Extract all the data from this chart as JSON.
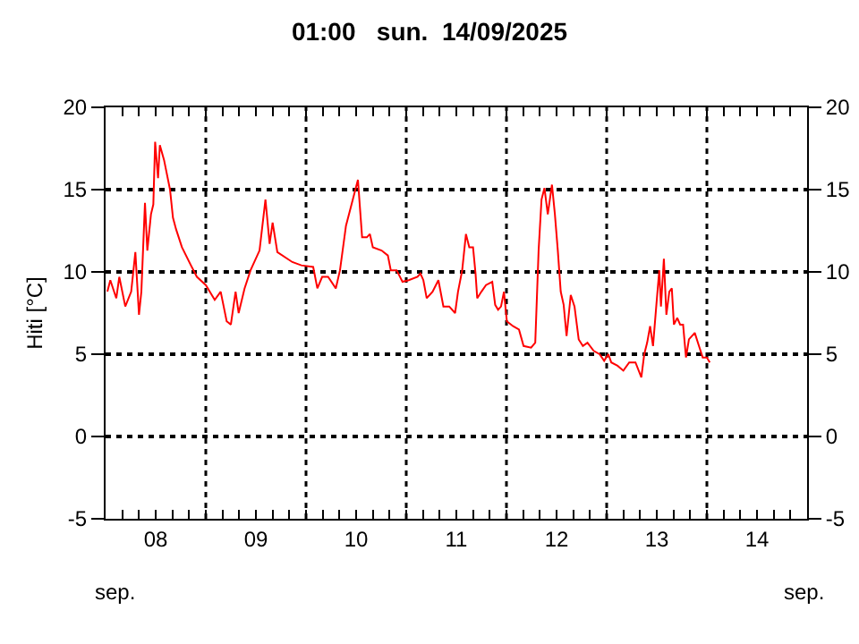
{
  "chart_data": {
    "type": "line",
    "title": "01:00   sun.  14/09/2025",
    "ylabel": "Hiti [°C]",
    "annotations": [
      "sep.",
      "sep."
    ],
    "x": [
      "2025-09-08T00:26",
      "2025-09-08T01:08",
      "2025-09-08T02:34",
      "2025-09-08T03:17",
      "2025-09-08T04:43",
      "2025-09-08T06:08",
      "2025-09-08T07:08",
      "2025-09-08T08:00",
      "2025-09-08T08:34",
      "2025-09-08T09:26",
      "2025-09-08T10:00",
      "2025-09-08T10:52",
      "2025-09-08T11:26",
      "2025-09-08T11:52",
      "2025-09-08T12:34",
      "2025-09-08T13:00",
      "2025-09-08T14:00",
      "2025-09-08T15:26",
      "2025-09-08T16:08",
      "2025-09-08T16:52",
      "2025-09-08T18:17",
      "2025-09-08T20:26",
      "2025-09-08T21:52",
      "2025-09-09T00:00",
      "2025-09-09T02:08",
      "2025-09-09T03:34",
      "2025-09-09T05:00",
      "2025-09-09T06:00",
      "2025-09-09T07:08",
      "2025-09-09T07:52",
      "2025-09-09T09:17",
      "2025-09-09T10:43",
      "2025-09-09T12:52",
      "2025-09-09T14:17",
      "2025-09-09T15:17",
      "2025-09-09T16:00",
      "2025-09-09T17:08",
      "2025-09-09T20:43",
      "2025-09-09T22:52",
      "2025-09-10T01:43",
      "2025-09-10T02:43",
      "2025-09-10T03:52",
      "2025-09-10T05:17",
      "2025-09-10T07:08",
      "2025-09-10T08:08",
      "2025-09-10T09:34",
      "2025-09-10T11:00",
      "2025-09-10T12:26",
      "2025-09-10T13:26",
      "2025-09-10T14:34",
      "2025-09-10T15:18",
      "2025-09-10T16:00",
      "2025-09-10T18:06",
      "2025-09-10T19:36",
      "2025-09-10T20:18",
      "2025-09-10T21:42",
      "2025-09-10T23:06",
      "2025-09-11T00:36",
      "2025-09-11T02:42",
      "2025-09-11T03:24",
      "2025-09-11T04:06",
      "2025-09-11T04:54",
      "2025-09-11T06:18",
      "2025-09-11T07:42",
      "2025-09-11T08:54",
      "2025-09-11T10:18",
      "2025-09-11T11:42",
      "2025-09-11T12:24",
      "2025-09-11T13:24",
      "2025-09-11T14:18",
      "2025-09-11T15:06",
      "2025-09-11T16:00",
      "2025-09-11T16:36",
      "2025-09-11T17:00",
      "2025-09-11T18:00",
      "2025-09-11T19:06",
      "2025-09-11T20:36",
      "2025-09-11T21:18",
      "2025-09-11T22:00",
      "2025-09-11T22:42",
      "2025-09-11T23:24",
      "2025-09-12T00:06",
      "2025-09-12T01:36",
      "2025-09-12T03:00",
      "2025-09-12T04:06",
      "2025-09-12T05:54",
      "2025-09-12T06:54",
      "2025-09-12T07:42",
      "2025-09-12T08:24",
      "2025-09-12T09:06",
      "2025-09-12T09:54",
      "2025-09-12T10:54",
      "2025-09-12T11:36",
      "2025-09-12T12:18",
      "2025-09-12T13:00",
      "2025-09-12T13:42",
      "2025-09-12T14:24",
      "2025-09-12T15:24",
      "2025-09-12T16:18",
      "2025-09-12T17:18",
      "2025-09-12T18:18",
      "2025-09-12T19:24",
      "2025-09-12T20:54",
      "2025-09-12T22:18",
      "2025-09-12T23:24",
      "2025-09-13T00:24",
      "2025-09-13T01:06",
      "2025-09-13T02:36",
      "2025-09-13T04:00",
      "2025-09-13T05:24",
      "2025-09-13T06:54",
      "2025-09-13T08:18",
      "2025-09-13T09:00",
      "2025-09-13T09:42",
      "2025-09-13T10:24",
      "2025-09-13T11:06",
      "2025-09-13T11:54",
      "2025-09-13T12:36",
      "2025-09-13T13:00",
      "2025-09-13T13:42",
      "2025-09-13T14:18",
      "2025-09-13T15:00",
      "2025-09-13T15:36",
      "2025-09-13T16:06",
      "2025-09-13T16:54",
      "2025-09-13T17:36",
      "2025-09-13T18:18",
      "2025-09-13T19:00",
      "2025-09-13T19:42",
      "2025-09-13T21:06",
      "2025-09-13T22:06",
      "2025-09-13T23:00",
      "2025-09-14T00:00",
      "2025-09-14T00:42"
    ],
    "series": [
      {
        "color": "#ff0000",
        "values": [
          8.8,
          9.5,
          8.4,
          9.7,
          7.9,
          8.8,
          11.2,
          7.4,
          8.8,
          14.2,
          11.3,
          13.5,
          14.1,
          17.9,
          15.7,
          17.7,
          16.8,
          15.0,
          13.3,
          12.6,
          11.5,
          10.4,
          9.7,
          9.2,
          8.3,
          8.8,
          7.0,
          6.8,
          8.8,
          7.5,
          9.0,
          10.1,
          11.3,
          14.4,
          11.7,
          13.0,
          11.2,
          10.6,
          10.4,
          10.3,
          9.0,
          9.7,
          9.7,
          9.0,
          10.1,
          12.8,
          14.2,
          15.6,
          12.1,
          12.1,
          12.3,
          11.5,
          11.3,
          11.0,
          10.1,
          10.1,
          9.4,
          9.5,
          9.7,
          9.9,
          9.5,
          8.4,
          8.8,
          9.5,
          7.9,
          7.9,
          7.5,
          8.8,
          10.1,
          12.3,
          11.5,
          11.5,
          9.9,
          8.4,
          8.8,
          9.2,
          9.4,
          8.0,
          7.7,
          7.9,
          8.8,
          7.0,
          6.7,
          6.5,
          5.5,
          5.4,
          5.7,
          11.3,
          14.4,
          15.1,
          13.5,
          15.3,
          13.5,
          11.3,
          8.8,
          8.0,
          6.1,
          8.6,
          7.9,
          5.9,
          5.5,
          5.7,
          5.2,
          5.0,
          4.6,
          5.0,
          4.5,
          4.3,
          4.0,
          4.5,
          4.5,
          3.6,
          5.0,
          5.7,
          6.7,
          5.5,
          8.0,
          10.1,
          7.9,
          10.8,
          7.4,
          8.8,
          9.0,
          6.8,
          7.2,
          6.8,
          6.8,
          4.8,
          5.9,
          6.3,
          5.5,
          4.8,
          4.8,
          4.5
        ]
      }
    ],
    "xlim": [
      "2025-09-08T00:00",
      "2025-09-15T00:00"
    ],
    "xticks": [
      {
        "value": "2025-09-08T04:00",
        "label": null
      },
      {
        "value": "2025-09-08T08:00",
        "label": null
      },
      {
        "value": "2025-09-08T12:00",
        "label": "08"
      },
      {
        "value": "2025-09-08T16:00",
        "label": null
      },
      {
        "value": "2025-09-08T20:00",
        "label": null
      },
      {
        "value": "2025-09-09T00:00",
        "label": null
      },
      {
        "value": "2025-09-09T04:00",
        "label": null
      },
      {
        "value": "2025-09-09T08:00",
        "label": null
      },
      {
        "value": "2025-09-09T12:00",
        "label": "09"
      },
      {
        "value": "2025-09-09T16:00",
        "label": null
      },
      {
        "value": "2025-09-09T20:00",
        "label": null
      },
      {
        "value": "2025-09-10T00:00",
        "label": null
      },
      {
        "value": "2025-09-10T04:00",
        "label": null
      },
      {
        "value": "2025-09-10T08:00",
        "label": null
      },
      {
        "value": "2025-09-10T12:00",
        "label": "10"
      },
      {
        "value": "2025-09-10T16:00",
        "label": null
      },
      {
        "value": "2025-09-10T20:00",
        "label": null
      },
      {
        "value": "2025-09-11T00:00",
        "label": null
      },
      {
        "value": "2025-09-11T04:00",
        "label": null
      },
      {
        "value": "2025-09-11T08:00",
        "label": null
      },
      {
        "value": "2025-09-11T12:00",
        "label": "11"
      },
      {
        "value": "2025-09-11T16:00",
        "label": null
      },
      {
        "value": "2025-09-11T20:00",
        "label": null
      },
      {
        "value": "2025-09-12T00:00",
        "label": null
      },
      {
        "value": "2025-09-12T04:00",
        "label": null
      },
      {
        "value": "2025-09-12T08:00",
        "label": null
      },
      {
        "value": "2025-09-12T12:00",
        "label": "12"
      },
      {
        "value": "2025-09-12T16:00",
        "label": null
      },
      {
        "value": "2025-09-12T20:00",
        "label": null
      },
      {
        "value": "2025-09-13T00:00",
        "label": null
      },
      {
        "value": "2025-09-13T04:00",
        "label": null
      },
      {
        "value": "2025-09-13T08:00",
        "label": null
      },
      {
        "value": "2025-09-13T12:00",
        "label": "13"
      },
      {
        "value": "2025-09-13T16:00",
        "label": null
      },
      {
        "value": "2025-09-13T20:00",
        "label": null
      },
      {
        "value": "2025-09-14T00:00",
        "label": null
      },
      {
        "value": "2025-09-14T04:00",
        "label": null
      },
      {
        "value": "2025-09-14T08:00",
        "label": null
      },
      {
        "value": "2025-09-14T12:00",
        "label": "14"
      },
      {
        "value": "2025-09-14T16:00",
        "label": null
      },
      {
        "value": "2025-09-14T20:00",
        "label": null
      }
    ],
    "ylim": [
      -5,
      20
    ],
    "yticks": [
      -5,
      0,
      5,
      10,
      15,
      20
    ],
    "y2lim": [
      -5,
      20
    ],
    "y2ticks": [
      -5,
      0,
      5,
      10,
      15,
      20
    ],
    "ref_lines": [
      {
        "axis": "x",
        "value": "2025-09-09T00:00",
        "line_style": "dotted"
      },
      {
        "axis": "x",
        "value": "2025-09-10T00:00",
        "line_style": "dotted"
      },
      {
        "axis": "x",
        "value": "2025-09-11T00:00",
        "line_style": "dotted"
      },
      {
        "axis": "x",
        "value": "2025-09-12T00:00",
        "line_style": "dotted"
      },
      {
        "axis": "x",
        "value": "2025-09-13T00:00",
        "line_style": "dotted"
      },
      {
        "axis": "x",
        "value": "2025-09-14T00:00",
        "line_style": "dotted"
      }
    ],
    "grid": "y",
    "marker": "none",
    "line_style": "solid"
  }
}
